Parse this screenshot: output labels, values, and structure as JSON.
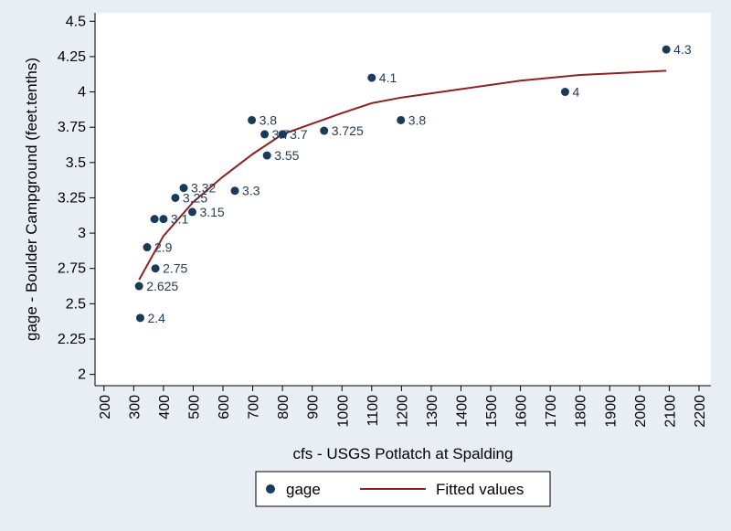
{
  "chart_data": {
    "type": "scatter",
    "title": "",
    "xlabel": "cfs - USGS Potlatch at Spalding",
    "ylabel": "gage - Boulder Campground (feet.tenths)",
    "xlim": [
      170,
      2240
    ],
    "ylim": [
      1.92,
      4.56
    ],
    "x_ticks": [
      200,
      300,
      400,
      500,
      600,
      700,
      800,
      900,
      1000,
      1100,
      1200,
      1300,
      1400,
      1500,
      1600,
      1700,
      1800,
      1900,
      2000,
      2100,
      2200
    ],
    "y_ticks": [
      2,
      2.25,
      2.5,
      2.75,
      3,
      3.25,
      3.5,
      3.75,
      4,
      4.25,
      4.5
    ],
    "y_tick_labels": [
      "2",
      "2.25",
      "2.5",
      "2.75",
      "3",
      "3.25",
      "3.5",
      "3.75",
      "4",
      "4.25",
      "4.5"
    ],
    "grid": false,
    "legend_position": "bottom",
    "colors": {
      "background": "#e8eef3",
      "plot_background": "#ffffff",
      "points": "#1a3a5a",
      "fit_line": "#8b2323",
      "label_text": "#1f3b57"
    },
    "series": [
      {
        "name": "gage",
        "kind": "scatter",
        "points": [
          {
            "x": 318,
            "y": 2.625,
            "label": "2.625"
          },
          {
            "x": 322,
            "y": 2.4,
            "label": "2.4"
          },
          {
            "x": 345,
            "y": 2.9,
            "label": "2.9"
          },
          {
            "x": 370,
            "y": 3.1,
            "label": ""
          },
          {
            "x": 373,
            "y": 2.75,
            "label": "2.75"
          },
          {
            "x": 400,
            "y": 3.1,
            "label": "3.1"
          },
          {
            "x": 440,
            "y": 3.25,
            "label": "3.25"
          },
          {
            "x": 468,
            "y": 3.32,
            "label": "3.32"
          },
          {
            "x": 497,
            "y": 3.15,
            "label": "3.15"
          },
          {
            "x": 640,
            "y": 3.3,
            "label": "3.3"
          },
          {
            "x": 697,
            "y": 3.8,
            "label": "3.8"
          },
          {
            "x": 740,
            "y": 3.7,
            "label": "3.7"
          },
          {
            "x": 748,
            "y": 3.55,
            "label": "3.55"
          },
          {
            "x": 800,
            "y": 3.7,
            "label": "3.7"
          },
          {
            "x": 940,
            "y": 3.725,
            "label": "3.725"
          },
          {
            "x": 1100,
            "y": 4.1,
            "label": "4.1"
          },
          {
            "x": 1198,
            "y": 3.8,
            "label": "3.8"
          },
          {
            "x": 1750,
            "y": 4.0,
            "label": "4"
          },
          {
            "x": 2090,
            "y": 4.3,
            "label": "4.3"
          }
        ]
      },
      {
        "name": "Fitted values",
        "kind": "line",
        "points": [
          {
            "x": 318,
            "y": 2.67
          },
          {
            "x": 400,
            "y": 2.98
          },
          {
            "x": 500,
            "y": 3.22
          },
          {
            "x": 600,
            "y": 3.4
          },
          {
            "x": 700,
            "y": 3.56
          },
          {
            "x": 800,
            "y": 3.7
          },
          {
            "x": 1000,
            "y": 3.85
          },
          {
            "x": 1100,
            "y": 3.92
          },
          {
            "x": 1200,
            "y": 3.96
          },
          {
            "x": 1400,
            "y": 4.02
          },
          {
            "x": 1600,
            "y": 4.08
          },
          {
            "x": 1800,
            "y": 4.12
          },
          {
            "x": 2000,
            "y": 4.14
          },
          {
            "x": 2090,
            "y": 4.15
          }
        ]
      }
    ]
  },
  "legend": {
    "items": [
      {
        "name": "gage",
        "type": "marker"
      },
      {
        "name": "Fitted values",
        "type": "line"
      }
    ]
  }
}
